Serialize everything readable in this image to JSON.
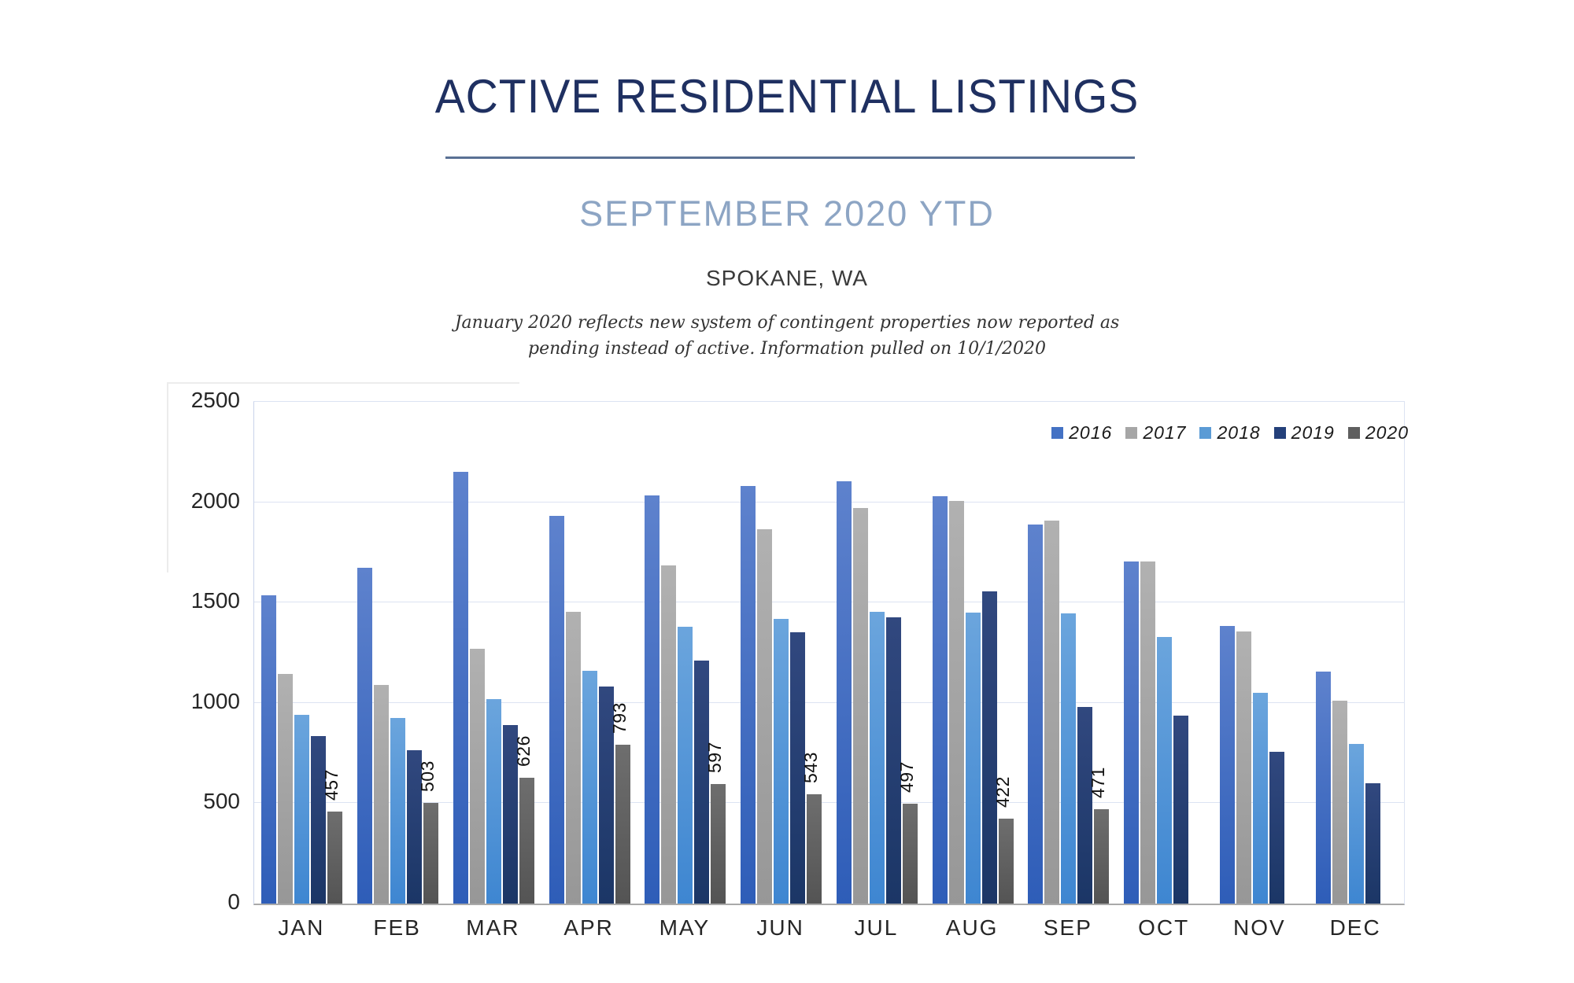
{
  "header": {
    "title": "ACTIVE RESIDENTIAL LISTINGS",
    "subtitle": "SEPTEMBER 2020 YTD",
    "location": "SPOKANE, WA",
    "note_line1": "January 2020 reflects new system of contingent properties now reported as",
    "note_line2": "pending instead of active.  Information pulled on 10/1/2020"
  },
  "theme": {
    "--title-color": "#1F3061",
    "--underline-color": "#5A7194",
    "--subtitle-color": "#8DA5C4",
    "--body-text": "#3A3A3A",
    "--grid-color": "#DCE3F2",
    "--axis-color": "#A9A9A9",
    "--tick-color": "#262626"
  },
  "chart_data": {
    "type": "bar",
    "title": "ACTIVE RESIDENTIAL LISTINGS",
    "subtitle": "SEPTEMBER 2020 YTD",
    "location": "SPOKANE, WA",
    "categories": [
      "JAN",
      "FEB",
      "MAR",
      "APR",
      "MAY",
      "JUN",
      "JUL",
      "AUG",
      "SEP",
      "OCT",
      "NOV",
      "DEC"
    ],
    "series": [
      {
        "name": "2016",
        "color": "#4472C4",
        "color_top": "#5E82CD",
        "color_bottom": "#2E5DB8",
        "values": [
          1535,
          1675,
          2150,
          1930,
          2035,
          2080,
          2105,
          2030,
          1890,
          1705,
          1385,
          1155
        ]
      },
      {
        "name": "2017",
        "color": "#A6A6A6",
        "color_top": "#B1B1B1",
        "color_bottom": "#979797",
        "values": [
          1145,
          1090,
          1270,
          1455,
          1685,
          1865,
          1970,
          2005,
          1910,
          1705,
          1355,
          1010
        ]
      },
      {
        "name": "2018",
        "color": "#5B9BD5",
        "color_top": "#6BA5DD",
        "color_bottom": "#3E86D1",
        "values": [
          940,
          925,
          1020,
          1160,
          1380,
          1420,
          1455,
          1450,
          1445,
          1330,
          1050,
          795
        ]
      },
      {
        "name": "2019",
        "color": "#24407A",
        "color_top": "#31487F",
        "color_bottom": "#1B3666",
        "values": [
          835,
          765,
          890,
          1080,
          1210,
          1350,
          1425,
          1555,
          980,
          935,
          755,
          600
        ]
      },
      {
        "name": "2020",
        "color": "#5F5F5F",
        "color_top": "#6E6E6E",
        "color_bottom": "#545454",
        "show_data_labels": true,
        "values": [
          457,
          503,
          626,
          793,
          597,
          543,
          497,
          422,
          471,
          null,
          null,
          null
        ]
      }
    ],
    "data_labels_2020": [
      457,
      503,
      626,
      793,
      597,
      543,
      497,
      422,
      471
    ],
    "xlabel": "",
    "ylabel": "",
    "ylim": [
      0,
      2500
    ],
    "yticks": [
      0,
      500,
      1000,
      1500,
      2000,
      2500
    ],
    "grid": true,
    "legend_position": "top-right",
    "legend_entries": [
      "2016",
      "2017",
      "2018",
      "2019",
      "2020"
    ]
  }
}
